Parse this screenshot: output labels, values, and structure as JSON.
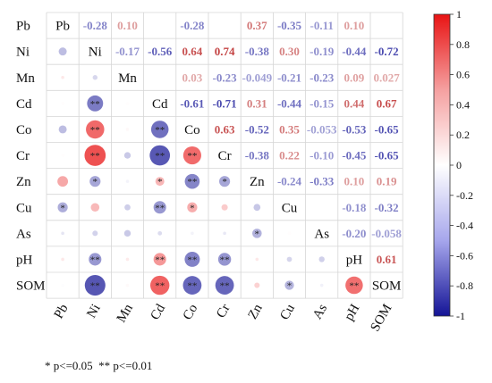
{
  "chart_data": {
    "type": "heatmap",
    "variables": [
      "Pb",
      "Ni",
      "Mn",
      "Cd",
      "Co",
      "Cr",
      "Zn",
      "Cu",
      "As",
      "pH",
      "SOM"
    ],
    "matrix": [
      [
        1,
        -0.28,
        0.1,
        0.01,
        -0.28,
        0.01,
        0.37,
        -0.35,
        -0.11,
        0.1,
        -0.01
      ],
      [
        -0.28,
        1,
        -0.17,
        -0.56,
        0.64,
        0.74,
        -0.38,
        0.3,
        -0.19,
        -0.44,
        -0.72
      ],
      [
        0.1,
        -0.17,
        1,
        0.01,
        0.03,
        -0.23,
        -0.049,
        -0.21,
        -0.23,
        0.09,
        0.027
      ],
      [
        0.01,
        -0.56,
        0.01,
        1,
        -0.61,
        -0.71,
        0.31,
        -0.44,
        -0.15,
        0.44,
        0.67
      ],
      [
        -0.28,
        0.64,
        0.03,
        -0.61,
        1,
        0.63,
        -0.52,
        0.35,
        -0.053,
        -0.53,
        -0.65
      ],
      [
        0.01,
        0.74,
        -0.23,
        -0.71,
        0.63,
        1,
        -0.38,
        0.22,
        -0.1,
        -0.45,
        -0.65
      ],
      [
        0.37,
        -0.38,
        -0.049,
        0.31,
        -0.52,
        -0.38,
        1,
        -0.24,
        -0.33,
        0.1,
        0.19
      ],
      [
        -0.35,
        0.3,
        -0.21,
        -0.44,
        0.35,
        0.22,
        -0.24,
        1,
        0.01,
        -0.18,
        -0.32
      ],
      [
        -0.11,
        -0.19,
        -0.23,
        -0.15,
        -0.053,
        -0.1,
        -0.33,
        0.01,
        1,
        -0.2,
        -0.058
      ],
      [
        0.1,
        -0.44,
        0.09,
        0.44,
        -0.53,
        -0.45,
        0.1,
        -0.18,
        -0.2,
        1,
        0.61
      ],
      [
        -0.01,
        -0.72,
        0.027,
        0.67,
        -0.65,
        -0.65,
        0.19,
        -0.32,
        -0.058,
        0.61,
        1
      ]
    ],
    "upper_labels": [
      [
        "",
        "-0.28",
        "0.10",
        "",
        "-0.28",
        "",
        "0.37",
        "-0.35",
        "-0.11",
        "0.10",
        ""
      ],
      [
        "",
        "",
        "-0.17",
        "-0.56",
        "0.64",
        "0.74",
        "-0.38",
        "0.30",
        "-0.19",
        "-0.44",
        "-0.72"
      ],
      [
        "",
        "",
        "",
        "",
        "0.03",
        "-0.23",
        "-0.049",
        "-0.21",
        "-0.23",
        "0.09",
        "0.027"
      ],
      [
        "",
        "",
        "",
        "",
        "-0.61",
        "-0.71",
        "0.31",
        "-0.44",
        "-0.15",
        "0.44",
        "0.67"
      ],
      [
        "",
        "",
        "",
        "",
        "",
        "0.63",
        "-0.52",
        "0.35",
        "-0.053",
        "-0.53",
        "-0.65"
      ],
      [
        "",
        "",
        "",
        "",
        "",
        "",
        "-0.38",
        "0.22",
        "-0.10",
        "-0.45",
        "-0.65"
      ],
      [
        "",
        "",
        "",
        "",
        "",
        "",
        "",
        "-0.24",
        "-0.33",
        "0.10",
        "0.19"
      ],
      [
        "",
        "",
        "",
        "",
        "",
        "",
        "",
        "",
        "",
        "-0.18",
        "-0.32"
      ],
      [
        "",
        "",
        "",
        "",
        "",
        "",
        "",
        "",
        "",
        "-0.20",
        "-0.058"
      ],
      [
        "",
        "",
        "",
        "",
        "",
        "",
        "",
        "",
        "",
        "",
        "0.61"
      ],
      [
        "",
        "",
        "",
        "",
        "",
        "",
        "",
        "",
        "",
        "",
        ""
      ]
    ],
    "significance": [
      [
        "",
        "",
        "",
        "",
        "",
        "",
        "",
        "",
        "",
        "",
        ""
      ],
      [
        "",
        "",
        "",
        "",
        "",
        "",
        "",
        "",
        "",
        "",
        ""
      ],
      [
        "",
        "",
        "",
        "",
        "",
        "",
        "",
        "",
        "",
        "",
        ""
      ],
      [
        "",
        "**",
        "",
        "",
        "",
        "",
        "",
        "",
        "",
        "",
        ""
      ],
      [
        "",
        "**",
        "",
        "**",
        "",
        "",
        "",
        "",
        "",
        "",
        ""
      ],
      [
        "",
        "**",
        "",
        "**",
        "**",
        "",
        "",
        "",
        "",
        "",
        ""
      ],
      [
        "",
        "*",
        "",
        "*",
        "**",
        "*",
        "",
        "",
        "",
        "",
        ""
      ],
      [
        "*",
        "",
        "",
        "**",
        "*",
        "",
        "",
        "",
        "",
        "",
        ""
      ],
      [
        "",
        "",
        "",
        "",
        "",
        "",
        "*",
        "",
        "",
        "",
        ""
      ],
      [
        "",
        "**",
        "",
        "**",
        "**",
        "**",
        "",
        "",
        "",
        "",
        ""
      ],
      [
        "",
        "**",
        "",
        "**",
        "**",
        "**",
        "",
        "*",
        "",
        "**",
        ""
      ]
    ],
    "colorbar": {
      "min": -1,
      "max": 1,
      "ticks": [
        "1",
        "0.8",
        "0.6",
        "0.4",
        "0.2",
        "0",
        "-0.2",
        "-0.4",
        "-0.6",
        "-0.8",
        "-1"
      ],
      "colors": {
        "positive": "#d7191c",
        "neutral": "#ffffff",
        "negative": "#1a1aa6"
      }
    },
    "legend_placement": "right"
  },
  "footnote": "* p<=0.05  ** p<=0.01"
}
